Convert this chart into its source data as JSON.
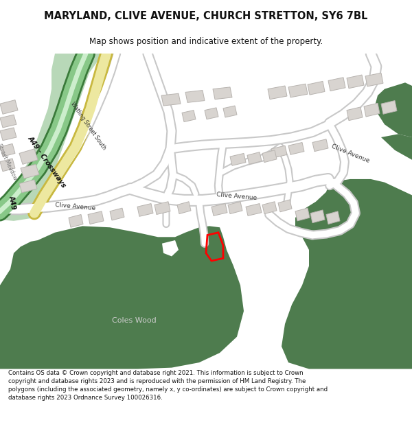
{
  "title": "MARYLAND, CLIVE AVENUE, CHURCH STRETTON, SY6 7BL",
  "subtitle": "Map shows position and indicative extent of the property.",
  "footer": "Contains OS data © Crown copyright and database right 2021. This information is subject to Crown copyright and database rights 2023 and is reproduced with the permission of HM Land Registry. The polygons (including the associated geometry, namely x, y co-ordinates) are subject to Crown copyright and database rights 2023 Ordnance Survey 100026316.",
  "bg_color": "#ffffff",
  "map_bg": "#f8f8f6",
  "green_dark": "#4e7c4e",
  "green_med": "#5c8f5c",
  "green_light_road": "#b8d8b8",
  "watling_yellow": "#e8d070",
  "road_color": "#ffffff",
  "road_border": "#c8c8c8",
  "building_color": "#d8d4d0",
  "building_border": "#b8b4b0",
  "plot_color": "#ff0000"
}
